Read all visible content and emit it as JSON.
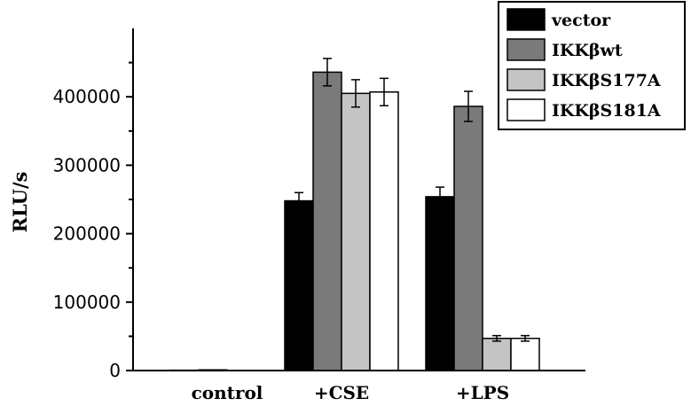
{
  "chart_data": {
    "type": "bar",
    "categories": [
      "control",
      "+CSE",
      "+LPS"
    ],
    "series": [
      {
        "name": "vector",
        "color": "#000000",
        "values": [
          500,
          248000,
          254000
        ],
        "errors": [
          0,
          12000,
          14000
        ]
      },
      {
        "name": "IKKβwt",
        "color": "#7a7a7a",
        "values": [
          1000,
          436000,
          386000
        ],
        "errors": [
          0,
          20000,
          22000
        ]
      },
      {
        "name": "IKKβS177A",
        "color": "#c4c4c4",
        "values": [
          0,
          405000,
          47000
        ],
        "errors": [
          0,
          20000,
          4000
        ]
      },
      {
        "name": "IKKβS181A",
        "color": "#ffffff",
        "values": [
          0,
          407000,
          47000
        ],
        "errors": [
          0,
          20000,
          4000
        ]
      }
    ],
    "title": "",
    "xlabel": "",
    "ylabel": "RLU/s",
    "ylim": [
      0,
      500000
    ],
    "yticks": [
      0,
      100000,
      200000,
      300000,
      400000
    ],
    "ytick_labels": [
      "0",
      "100000",
      "200000",
      "300000",
      "400000"
    ],
    "grid": false,
    "legend_position": "top-right"
  }
}
